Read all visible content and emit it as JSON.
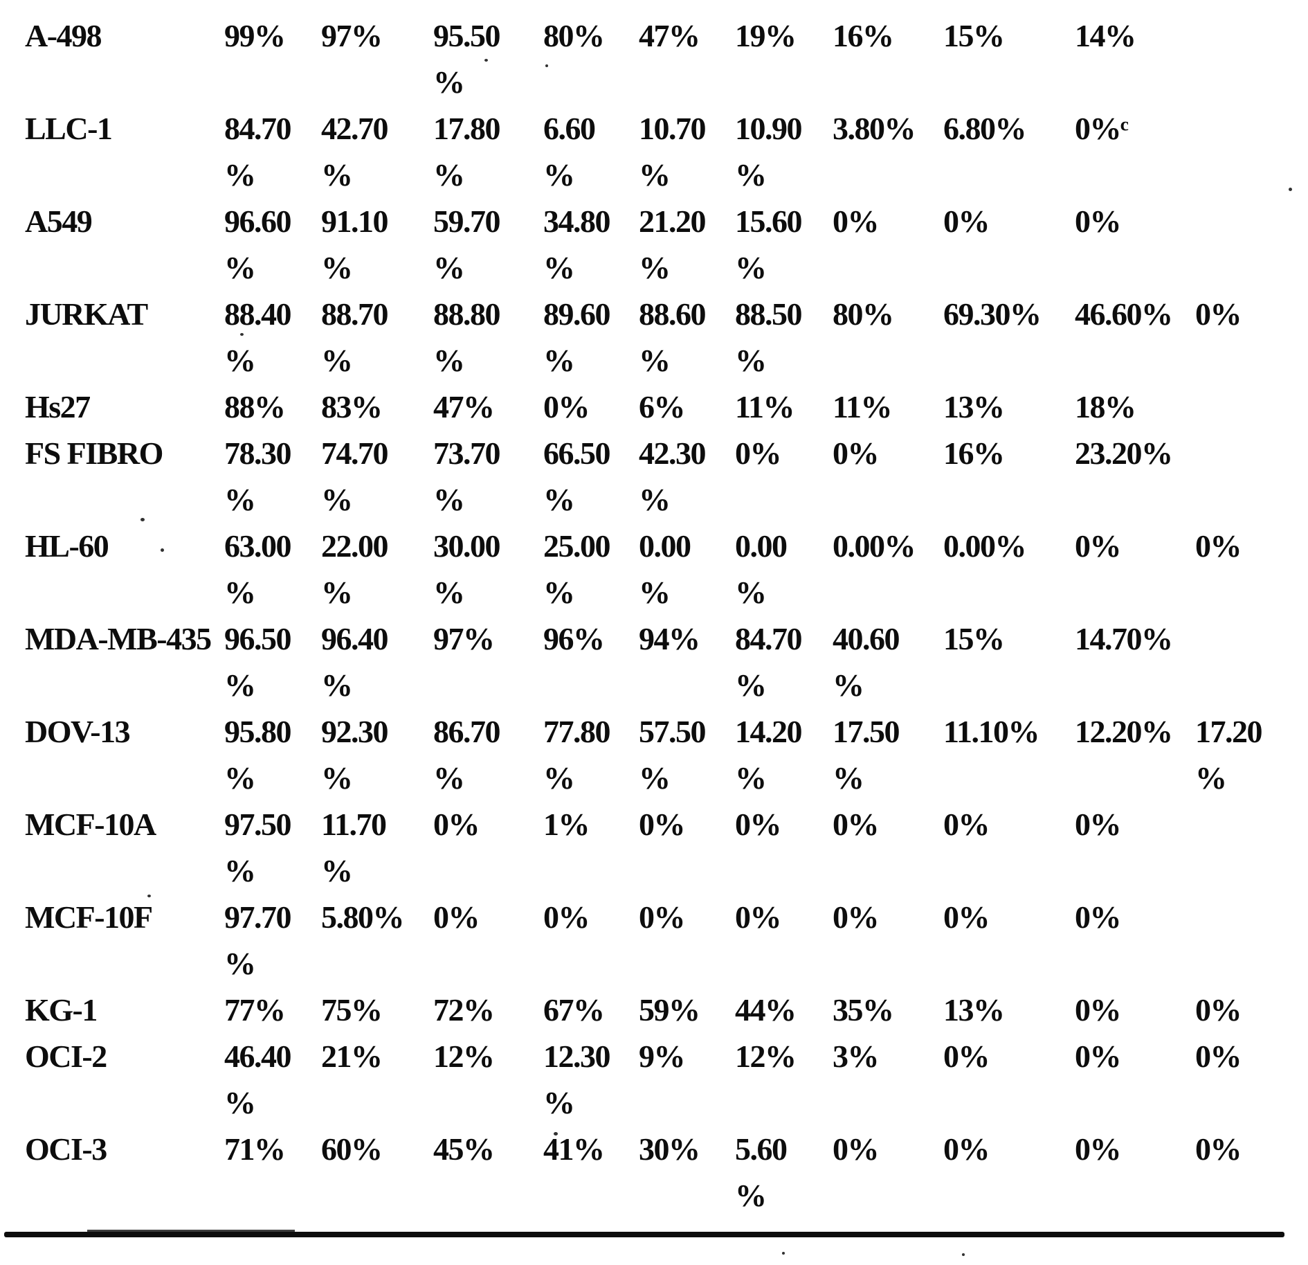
{
  "colors": {
    "ink": "#0d0d0d",
    "paper": "#ffffff"
  },
  "table": {
    "rows": [
      {
        "label": "A-498",
        "values": [
          "99%",
          "97%",
          "95.50\n%",
          "80%",
          "47%",
          "19%",
          "16%",
          "15%",
          "14%",
          ""
        ]
      },
      {
        "label": "LLC-1",
        "values": [
          "84.70\n%",
          "42.70\n%",
          "17.80\n%",
          "6.60\n%",
          "10.70\n%",
          "10.90\n%",
          "3.80%",
          "6.80%",
          "0%ᶜ",
          ""
        ]
      },
      {
        "label": "A549",
        "values": [
          "96.60\n%",
          "91.10\n%",
          "59.70\n%",
          "34.80\n%",
          "21.20\n%",
          "15.60\n%",
          "0%",
          "0%",
          "0%",
          ""
        ]
      },
      {
        "label": "JURKAT",
        "values": [
          "88.40\n%",
          "88.70\n%",
          "88.80\n%",
          "89.60\n%",
          "88.60\n%",
          "88.50\n%",
          "80%",
          "69.30%",
          "46.60%",
          "0%"
        ]
      },
      {
        "label": "Hs27",
        "values": [
          "88%",
          "83%",
          "47%",
          "0%",
          "6%",
          "11%",
          "11%",
          "13%",
          "18%",
          ""
        ]
      },
      {
        "label": "FS FIBRO",
        "values": [
          "78.30\n%",
          "74.70\n%",
          "73.70\n%",
          "66.50\n%",
          "42.30\n%",
          "0%",
          "0%",
          "16%",
          "23.20%",
          ""
        ]
      },
      {
        "label": "HL-60",
        "values": [
          "63.00\n%",
          "22.00\n%",
          "30.00\n%",
          "25.00\n%",
          "0.00\n%",
          "0.00\n%",
          "0.00%",
          "0.00%",
          "0%",
          "0%"
        ]
      },
      {
        "label": "MDA-MB-435",
        "values": [
          "96.50\n%",
          "96.40\n%",
          "97%",
          "96%",
          "94%",
          "84.70\n%",
          "40.60\n%",
          "15%",
          "14.70%",
          ""
        ]
      },
      {
        "label": "DOV-13",
        "values": [
          "95.80\n%",
          "92.30\n%",
          "86.70\n%",
          "77.80\n%",
          "57.50\n%",
          "14.20\n%",
          "17.50\n%",
          "11.10%",
          "12.20%",
          "17.20\n%"
        ]
      },
      {
        "label": "MCF-10A",
        "values": [
          "97.50\n%",
          "11.70\n%",
          "0%",
          "1%",
          "0%",
          "0%",
          "0%",
          "0%",
          "0%",
          ""
        ]
      },
      {
        "label": "MCF-10F",
        "values": [
          "97.70\n%",
          "5.80%",
          "0%",
          "0%",
          "0%",
          "0%",
          "0%",
          "0%",
          "0%",
          ""
        ]
      },
      {
        "label": "KG-1",
        "values": [
          "77%",
          "75%",
          "72%",
          "67%",
          "59%",
          "44%",
          "35%",
          "13%",
          "0%",
          "0%"
        ]
      },
      {
        "label": "OCI-2",
        "values": [
          "46.40\n%",
          "21%",
          "12%",
          "12.30\n%",
          "9%",
          "12%",
          "3%",
          "0%",
          "0%",
          "0%"
        ]
      },
      {
        "label": "OCI-3",
        "values": [
          "71%",
          "60%",
          "45%",
          "41%",
          "30%",
          "5.60\n%",
          "0%",
          "0%",
          "0%",
          "0%"
        ]
      }
    ]
  }
}
